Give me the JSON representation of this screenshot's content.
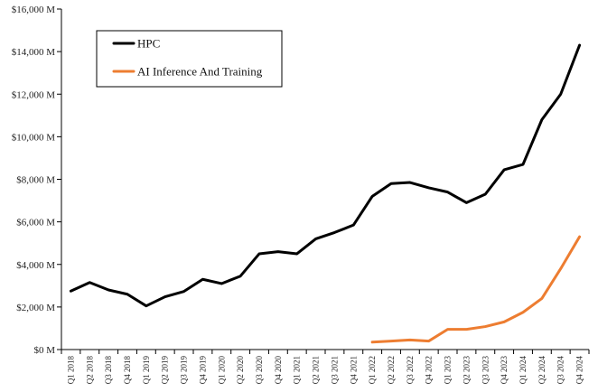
{
  "chart_data": {
    "type": "line",
    "categories": [
      "Q1 2018",
      "Q2 2018",
      "Q3 2018",
      "Q4 2018",
      "Q1 2019",
      "Q2 2019",
      "Q3 2019",
      "Q4 2019",
      "Q1 2020",
      "Q2 2020",
      "Q3 2020",
      "Q4 2020",
      "Q1 2021",
      "Q2 2021",
      "Q3 2021",
      "Q4 2021",
      "Q1 2022",
      "Q2 2022",
      "Q3 2022",
      "Q4 2022",
      "Q1 2023",
      "Q2 2023",
      "Q3 2023",
      "Q4 2023",
      "Q1 2024",
      "Q2 2024",
      "Q3 2024",
      "Q4 2024"
    ],
    "series": [
      {
        "name": "HPC",
        "color": "#000000",
        "values": [
          2750,
          3150,
          2800,
          2600,
          2050,
          2480,
          2730,
          3300,
          3100,
          3450,
          4500,
          4600,
          4500,
          5200,
          5500,
          5850,
          7200,
          7800,
          7850,
          7600,
          7400,
          6900,
          7300,
          8450,
          8700,
          10800,
          12000,
          14300
        ]
      },
      {
        "name": "AI Inference And Training",
        "color": "#ED7D31",
        "values": [
          null,
          null,
          null,
          null,
          null,
          null,
          null,
          null,
          null,
          null,
          null,
          null,
          null,
          null,
          null,
          null,
          350,
          400,
          450,
          400,
          950,
          950,
          1080,
          1300,
          1750,
          2400,
          3800,
          5300
        ]
      }
    ],
    "ylim": [
      0,
      16000
    ],
    "yticks": [
      0,
      2000,
      4000,
      6000,
      8000,
      10000,
      12000,
      14000,
      16000
    ],
    "ytick_labels": [
      "$0 M",
      "$2,000 M",
      "$4,000 M",
      "$6,000 M",
      "$8,000 M",
      "$10,000 M",
      "$12,000 M",
      "$14,000 M",
      "$16,000 M"
    ],
    "grid": false,
    "legend": "top-left"
  }
}
